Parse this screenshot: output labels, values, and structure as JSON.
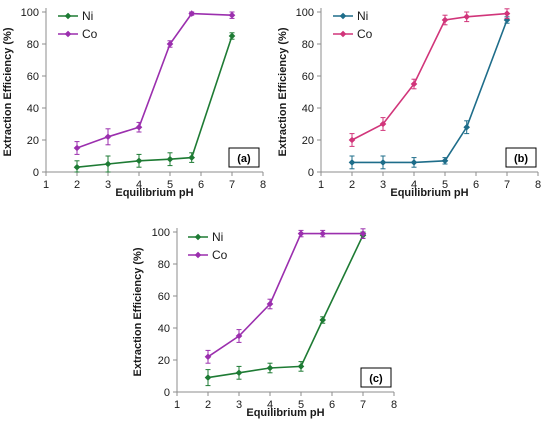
{
  "chart_data": [
    {
      "type": "line",
      "panel_label": "(a)",
      "xlabel": "Equilibrium  pH",
      "ylabel": "Extraction Efficiency (%)",
      "xlim": [
        1,
        8
      ],
      "ylim": [
        0,
        100
      ],
      "xticks": [
        1,
        2,
        3,
        4,
        5,
        6,
        7,
        8
      ],
      "yticks": [
        0,
        20,
        40,
        60,
        80,
        100
      ],
      "legend_position": "top-left",
      "series": [
        {
          "name": "Ni",
          "color": "#1e7b34",
          "x": [
            2,
            3,
            4,
            5,
            5.7,
            7
          ],
          "y": [
            3,
            5,
            7,
            8,
            9,
            85
          ],
          "err": [
            4,
            5,
            4,
            4,
            3,
            2
          ]
        },
        {
          "name": "Co",
          "color": "#9b2fae",
          "x": [
            2,
            3,
            4,
            5,
            5.7,
            7
          ],
          "y": [
            15,
            22,
            28,
            80,
            99,
            98
          ],
          "err": [
            4,
            5,
            3,
            2,
            1,
            2
          ]
        }
      ]
    },
    {
      "type": "line",
      "panel_label": "(b)",
      "xlabel": "Equilibrium  pH",
      "ylabel": "Extraction Efficiency (%)",
      "xlim": [
        1,
        8
      ],
      "ylim": [
        0,
        100
      ],
      "xticks": [
        1,
        2,
        3,
        4,
        5,
        6,
        7,
        8
      ],
      "yticks": [
        0,
        20,
        40,
        60,
        80,
        100
      ],
      "legend_position": "top-left",
      "series": [
        {
          "name": "Ni",
          "color": "#1e6d8a",
          "x": [
            2,
            3,
            4,
            5,
            5.7,
            7
          ],
          "y": [
            6,
            6,
            6,
            7,
            28,
            95
          ],
          "err": [
            4,
            4,
            3,
            2,
            4,
            2
          ]
        },
        {
          "name": "Co",
          "color": "#d1357a",
          "x": [
            2,
            3,
            4,
            5,
            5.7,
            7
          ],
          "y": [
            20,
            30,
            55,
            95,
            97,
            99
          ],
          "err": [
            4,
            4,
            3,
            3,
            3,
            3
          ]
        }
      ]
    },
    {
      "type": "line",
      "panel_label": "(c)",
      "xlabel": "Equilibrium  pH",
      "ylabel": "Extraction Efficiency (%)",
      "xlim": [
        1,
        8
      ],
      "ylim": [
        0,
        100
      ],
      "xticks": [
        1,
        2,
        3,
        4,
        5,
        6,
        7,
        8
      ],
      "yticks": [
        0,
        20,
        40,
        60,
        80,
        100
      ],
      "legend_position": "top-left",
      "series": [
        {
          "name": "Ni",
          "color": "#1e7b34",
          "x": [
            2,
            3,
            4,
            5,
            5.7,
            7
          ],
          "y": [
            9,
            12,
            15,
            16,
            45,
            98
          ],
          "err": [
            5,
            4,
            3,
            3,
            2,
            2
          ]
        },
        {
          "name": "Co",
          "color": "#9b2fae",
          "x": [
            2,
            3,
            4,
            5,
            5.7,
            7
          ],
          "y": [
            22,
            35,
            55,
            99,
            99,
            99
          ],
          "err": [
            4,
            4,
            3,
            2,
            2,
            3
          ]
        }
      ]
    }
  ]
}
